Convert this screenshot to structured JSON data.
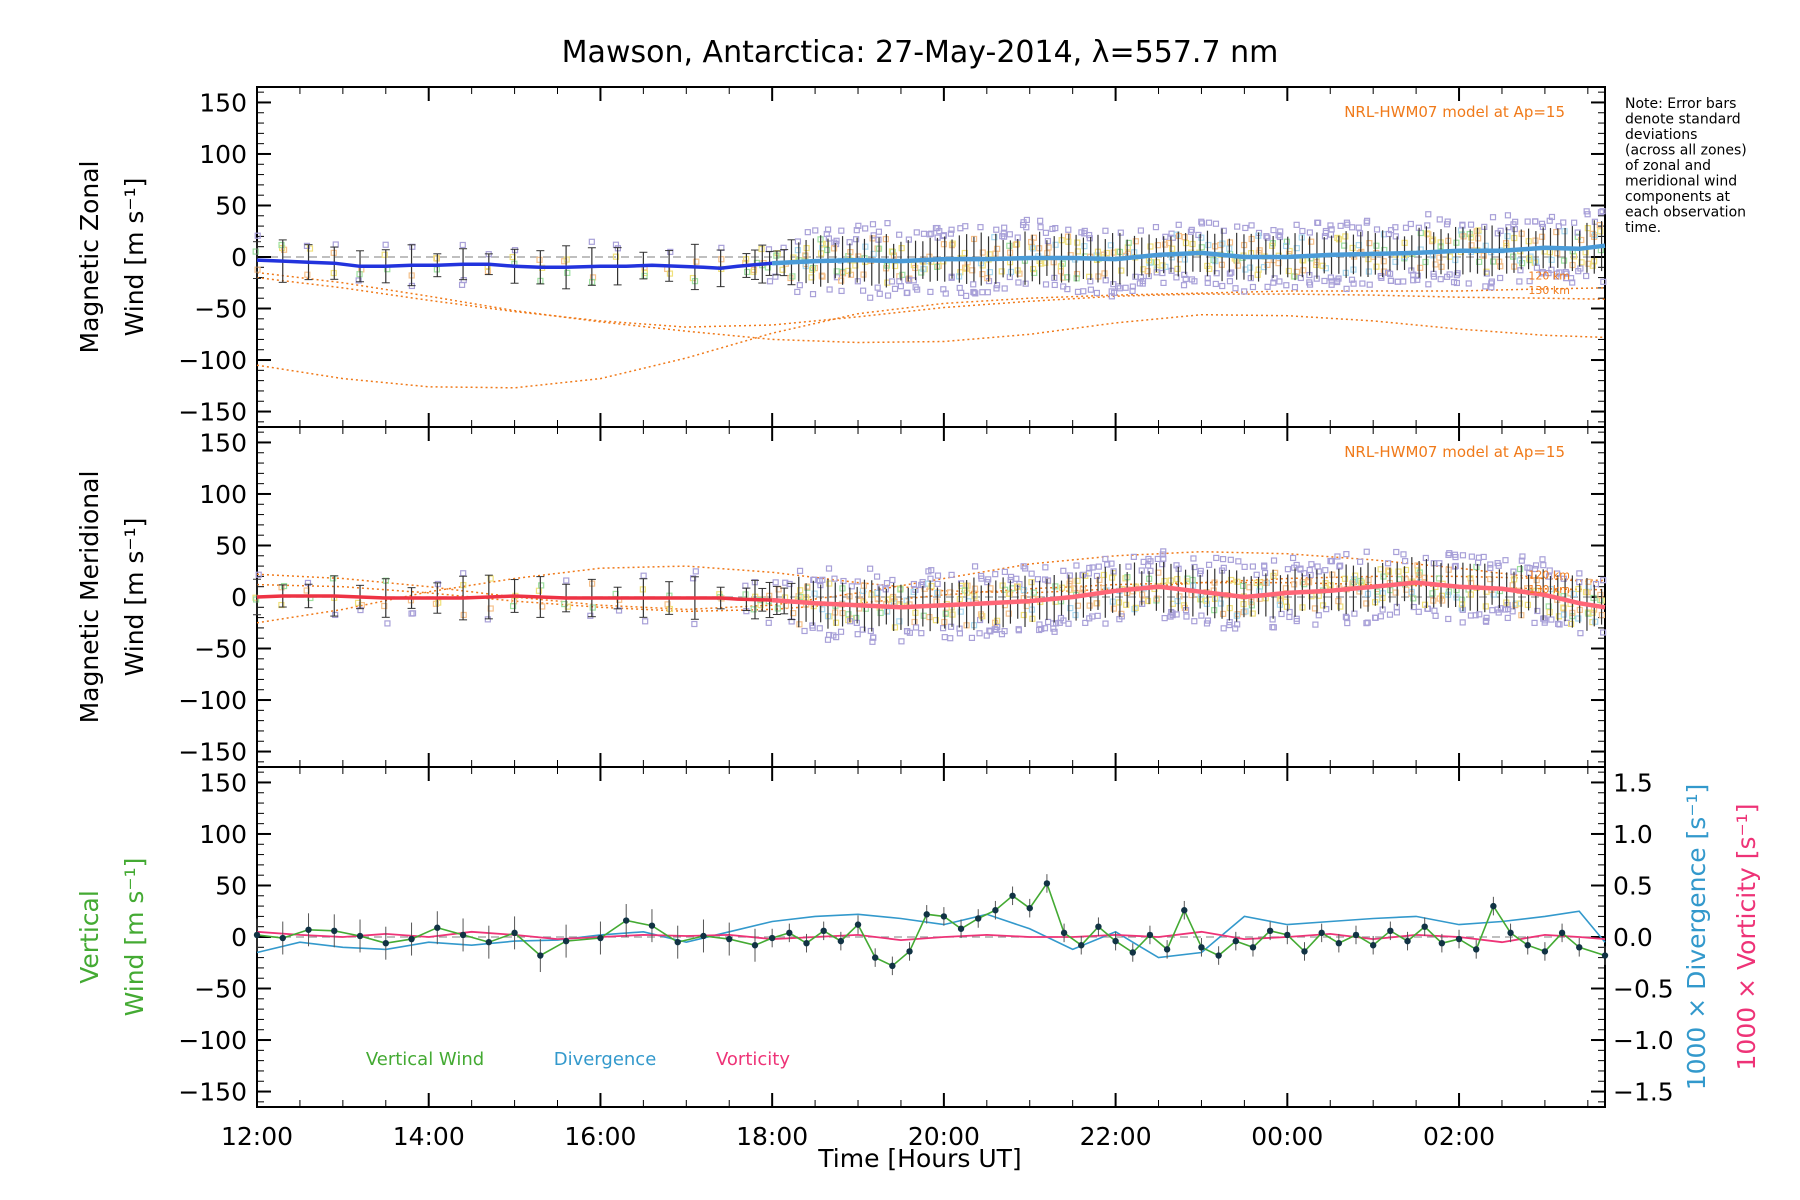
{
  "chart_data": {
    "type": "line",
    "title": "Mawson, Antarctica: 27-May-2014, λ=557.7 nm",
    "xlabel": "Time [Hours UT]",
    "x_tick_labels": [
      "12:00",
      "14:00",
      "16:00",
      "18:00",
      "20:00",
      "22:00",
      "00:00",
      "02:00"
    ],
    "x_tick_hours": [
      12,
      14,
      16,
      18,
      20,
      22,
      24,
      26
    ],
    "xlim_hours": [
      12,
      27.7
    ],
    "y_tick_labels": [
      "150",
      "100",
      "50",
      "0",
      "−50",
      "−100",
      "−150"
    ],
    "y_tick_values": [
      150,
      100,
      50,
      0,
      -50,
      -100,
      -150
    ],
    "ylim": [
      -165,
      165
    ],
    "right_tick_labels": [
      "1.5",
      "1.0",
      "0.5",
      "0.0",
      "−0.5",
      "−1.0",
      "−1.5"
    ],
    "right_tick_values": [
      1.5,
      1.0,
      0.5,
      0.0,
      -0.5,
      -1.0,
      -1.5
    ],
    "right_ylim": [
      -1.65,
      1.65
    ],
    "note_lines": [
      "Note: Error bars",
      "denote standard",
      "deviations",
      "(across all zones)",
      "of zonal and",
      "meridional wind",
      "components at",
      "each observation",
      "time."
    ],
    "colors": {
      "zonal": "#2233dd",
      "zonal_light": "#4a9bd8",
      "meridional": "#ee3344",
      "meridional_light": "#ff6677",
      "vertical": "#44aa33",
      "divergence": "#3399cc",
      "vorticity": "#ee3377",
      "model": "#f07a1a",
      "scatter": "#a8a0d8",
      "vpoints": "#113344"
    },
    "panels": [
      {
        "id": "zonal",
        "ylabel_line1": "Magnetic Zonal",
        "ylabel_line2": "Wind [m s⁻¹]",
        "model_label": "NRL-HWM07 model at Ap=15",
        "km_labels": [
          "120 km",
          "130 km"
        ],
        "series": [
          {
            "name": "Magnetic Zonal Wind",
            "x": [
              12.0,
              12.3,
              12.6,
              12.9,
              13.2,
              13.5,
              13.8,
              14.1,
              14.4,
              14.7,
              15.0,
              15.3,
              15.6,
              16.0,
              16.3,
              16.6,
              16.9,
              17.2,
              17.4,
              17.6,
              18.0,
              18.5,
              19.0,
              19.5,
              20.0,
              20.5,
              21.0,
              21.5,
              22.0,
              22.5,
              23.0,
              23.5,
              24.0,
              24.5,
              25.0,
              25.5,
              26.0,
              26.5,
              27.0,
              27.4,
              27.7
            ],
            "y": [
              -3,
              -4,
              -5,
              -6,
              -9,
              -9,
              -8,
              -8,
              -7,
              -7,
              -9,
              -10,
              -10,
              -9,
              -9,
              -8,
              -9,
              -10,
              -11,
              -9,
              -6,
              -4,
              -3,
              -4,
              -2,
              -2,
              -1,
              -1,
              -2,
              2,
              4,
              0,
              0,
              2,
              3,
              4,
              6,
              6,
              9,
              8,
              11
            ]
          }
        ],
        "model_curves": [
          {
            "x": [
              12,
              13,
              14,
              15,
              16,
              17,
              18,
              19,
              20,
              21,
              22,
              23,
              24,
              25,
              26,
              27,
              27.7
            ],
            "y": [
              -15,
              -25,
              -38,
              -52,
              -63,
              -72,
              -80,
              -83,
              -82,
              -75,
              -64,
              -56,
              -57,
              -62,
              -70,
              -76,
              -78
            ]
          },
          {
            "x": [
              12,
              13,
              14,
              15,
              16,
              17,
              18,
              19,
              20,
              21,
              22,
              23,
              24,
              25,
              26,
              27,
              27.7
            ],
            "y": [
              -105,
              -118,
              -126,
              -127,
              -118,
              -98,
              -74,
              -55,
              -45,
              -40,
              -37,
              -35,
              -33,
              -33,
              -33,
              -31,
              -30
            ]
          },
          {
            "x": [
              12,
              13,
              14,
              15,
              16,
              17,
              18,
              19,
              20,
              21,
              22,
              23,
              24,
              25,
              26,
              27,
              27.7
            ],
            "y": [
              -20,
              -30,
              -42,
              -53,
              -62,
              -68,
              -66,
              -58,
              -49,
              -43,
              -38,
              -36,
              -36,
              -37,
              -39,
              -40,
              -41
            ]
          }
        ]
      },
      {
        "id": "meridional",
        "ylabel_line1": "Magnetic Meridional",
        "ylabel_line2": "Wind [m s⁻¹]",
        "model_label": "NRL-HWM07 model at Ap=15",
        "km_labels": [
          "120 km",
          "130 km"
        ],
        "series": [
          {
            "name": "Magnetic Meridional Wind",
            "x": [
              12.0,
              12.3,
              12.6,
              12.9,
              13.2,
              13.5,
              13.8,
              14.1,
              14.4,
              14.7,
              15.0,
              15.3,
              15.6,
              16.0,
              16.3,
              16.6,
              16.9,
              17.2,
              17.4,
              17.6,
              18.0,
              18.5,
              19.0,
              19.5,
              20.0,
              20.5,
              21.0,
              21.5,
              22.0,
              22.5,
              23.0,
              23.5,
              24.0,
              24.5,
              25.0,
              25.5,
              26.0,
              26.5,
              27.0,
              27.4,
              27.7
            ],
            "y": [
              0,
              1,
              1,
              1,
              0,
              -1,
              -1,
              -1,
              -1,
              0,
              1,
              0,
              -1,
              -1,
              -1,
              -1,
              -1,
              -1,
              -1,
              -2,
              -3,
              -6,
              -8,
              -10,
              -8,
              -6,
              -4,
              0,
              6,
              10,
              5,
              0,
              4,
              6,
              10,
              14,
              10,
              8,
              2,
              -6,
              -10
            ]
          }
        ],
        "model_curves": [
          {
            "x": [
              12,
              13,
              14,
              15,
              16,
              17,
              18,
              19,
              20,
              21,
              22,
              23,
              24,
              25,
              26,
              27,
              27.7
            ],
            "y": [
              22,
              18,
              10,
              0,
              -8,
              -12,
              -8,
              4,
              18,
              32,
              40,
              44,
              42,
              36,
              28,
              18,
              14
            ]
          },
          {
            "x": [
              12,
              13,
              14,
              15,
              16,
              17,
              18,
              19,
              20,
              21,
              22,
              23,
              24,
              25,
              26,
              27,
              27.7
            ],
            "y": [
              -25,
              -12,
              5,
              18,
              28,
              30,
              24,
              14,
              6,
              4,
              8,
              14,
              18,
              20,
              20,
              18,
              16
            ]
          },
          {
            "x": [
              12,
              13,
              14,
              15,
              16,
              17,
              18,
              19,
              20,
              21,
              22,
              23,
              24,
              25,
              26,
              27,
              27.7
            ],
            "y": [
              12,
              10,
              4,
              -4,
              -10,
              -14,
              -12,
              -6,
              2,
              8,
              12,
              14,
              14,
              12,
              10,
              8,
              7
            ]
          }
        ]
      },
      {
        "id": "vertical",
        "ylabel_line1": "Vertical",
        "ylabel_line2": "Wind [m s⁻¹]",
        "right_label1": "1000 × Divergence [s⁻¹]",
        "right_label2": "1000 × Vorticity [s⁻¹]",
        "legend": [
          "Vertical Wind",
          "Divergence",
          "Vorticity"
        ],
        "series": [
          {
            "name": "Vertical Wind",
            "x": [
              12.0,
              12.3,
              12.6,
              12.9,
              13.2,
              13.5,
              13.8,
              14.1,
              14.4,
              14.7,
              15.0,
              15.3,
              15.6,
              16.0,
              16.3,
              16.6,
              16.9,
              17.2,
              17.5,
              17.8,
              18.0,
              18.2,
              18.4,
              18.6,
              18.8,
              19.0,
              19.2,
              19.4,
              19.6,
              19.8,
              20.0,
              20.2,
              20.4,
              20.6,
              20.8,
              21.0,
              21.2,
              21.4,
              21.6,
              21.8,
              22.0,
              22.2,
              22.4,
              22.6,
              22.8,
              23.0,
              23.2,
              23.4,
              23.6,
              23.8,
              24.0,
              24.2,
              24.4,
              24.6,
              24.8,
              25.0,
              25.2,
              25.4,
              25.6,
              25.8,
              26.0,
              26.2,
              26.4,
              26.6,
              26.8,
              27.0,
              27.2,
              27.4,
              27.7
            ],
            "y": [
              2,
              -1,
              7,
              6,
              1,
              -6,
              -2,
              9,
              2,
              -5,
              4,
              -18,
              -4,
              -1,
              16,
              11,
              -5,
              1,
              -2,
              -8,
              -1,
              4,
              -6,
              6,
              -4,
              12,
              -20,
              -28,
              -14,
              22,
              20,
              8,
              18,
              26,
              40,
              28,
              52,
              4,
              -8,
              10,
              -4,
              -15,
              2,
              -12,
              26,
              -10,
              -18,
              -4,
              -10,
              6,
              2,
              -14,
              4,
              -6,
              2,
              -8,
              6,
              -4,
              10,
              -6,
              -2,
              -12,
              30,
              4,
              -8,
              -14,
              4,
              -10,
              -18
            ]
          },
          {
            "name": "Divergence",
            "x": [
              12.0,
              12.5,
              13.0,
              13.5,
              14.0,
              14.5,
              15.0,
              15.5,
              16.0,
              16.5,
              17.0,
              17.5,
              18.0,
              18.5,
              19.0,
              19.5,
              20.0,
              20.5,
              21.0,
              21.5,
              22.0,
              22.5,
              23.0,
              23.5,
              24.0,
              24.5,
              25.0,
              25.5,
              26.0,
              26.5,
              27.0,
              27.4,
              27.7
            ],
            "y": [
              -0.15,
              -0.05,
              -0.1,
              -0.12,
              -0.05,
              -0.08,
              -0.04,
              -0.03,
              0.02,
              0.05,
              -0.05,
              0.05,
              0.15,
              0.2,
              0.22,
              0.18,
              0.12,
              0.22,
              0.08,
              -0.12,
              0.05,
              -0.2,
              -0.15,
              0.2,
              0.12,
              0.15,
              0.18,
              0.2,
              0.12,
              0.15,
              0.2,
              0.25,
              -0.05
            ]
          },
          {
            "name": "Vorticity",
            "x": [
              12.0,
              12.5,
              13.0,
              13.5,
              14.0,
              14.5,
              15.0,
              15.5,
              16.0,
              16.5,
              17.0,
              17.5,
              18.0,
              18.5,
              19.0,
              19.5,
              20.0,
              20.5,
              21.0,
              21.5,
              22.0,
              22.5,
              23.0,
              23.5,
              24.0,
              24.5,
              25.0,
              25.5,
              26.0,
              26.5,
              27.0,
              27.4,
              27.7
            ],
            "y": [
              0.05,
              0.02,
              0.0,
              0.03,
              0.0,
              0.05,
              0.02,
              -0.02,
              0.0,
              0.02,
              0.01,
              0.02,
              -0.02,
              0.0,
              0.02,
              -0.03,
              0.0,
              0.02,
              0.0,
              0.0,
              0.02,
              0.0,
              0.05,
              -0.02,
              0.0,
              0.03,
              -0.02,
              0.02,
              0.0,
              -0.05,
              0.02,
              0.0,
              -0.02
            ]
          }
        ]
      }
    ]
  }
}
